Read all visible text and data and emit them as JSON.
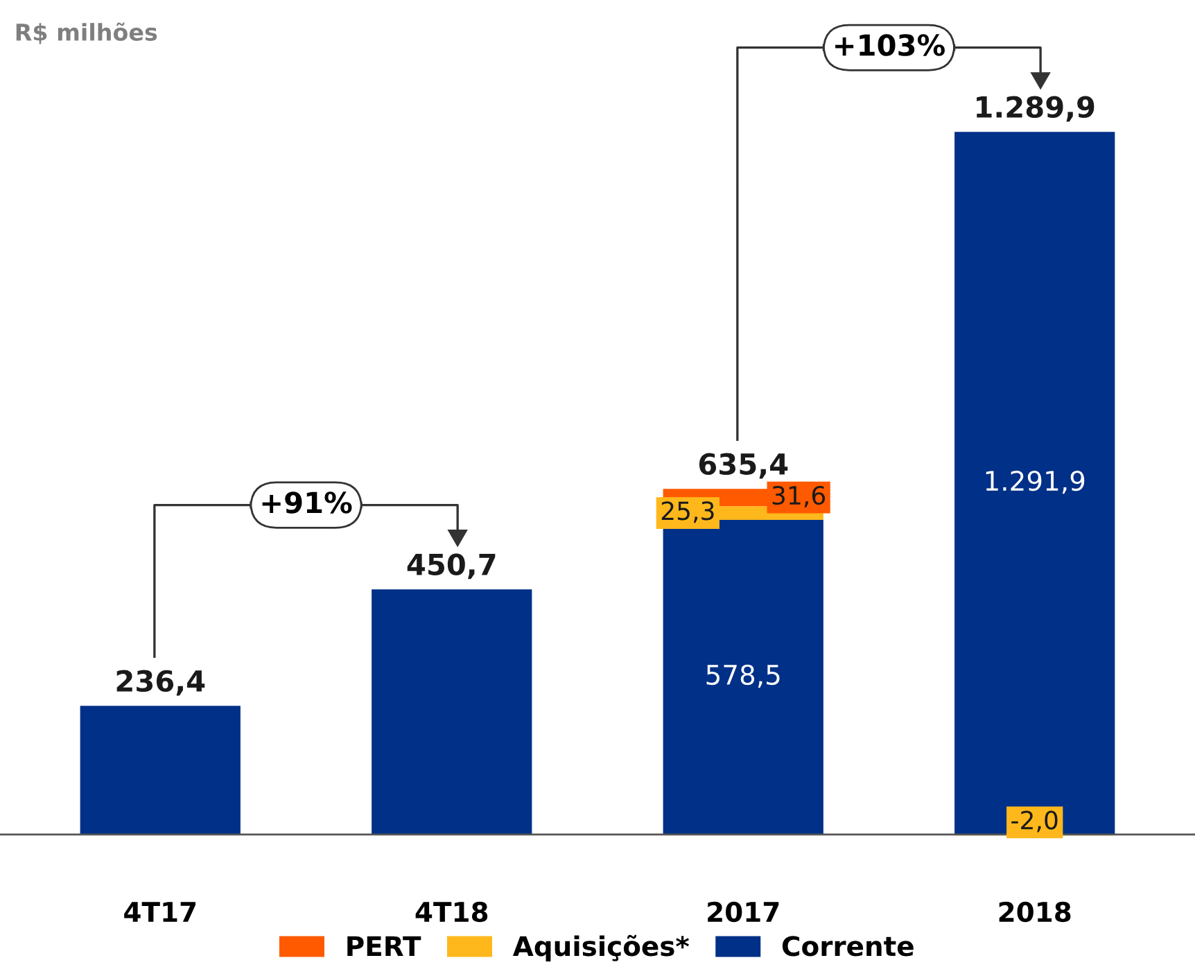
{
  "chart_data": {
    "type": "bar",
    "stacked": true,
    "annotations": [
      "R$ milhões",
      "+91%",
      "+103%"
    ],
    "categories": [
      "4T17",
      "4T18",
      "2017",
      "2018"
    ],
    "series": [
      {
        "name": "Corrente",
        "color": "#003087",
        "values": [
          236.4,
          450.7,
          578.5,
          1291.9
        ],
        "value_labels": [
          null,
          null,
          "578,5",
          "1.291,9"
        ]
      },
      {
        "name": "Aquisições*",
        "color": "#ffb81c",
        "values": [
          null,
          null,
          25.3,
          -2.0
        ],
        "value_labels": [
          null,
          null,
          "25,3",
          "-2,0"
        ]
      },
      {
        "name": "PERT",
        "color": "#ff5a00",
        "values": [
          null,
          null,
          31.6,
          null
        ],
        "value_labels": [
          null,
          null,
          "31,6",
          null
        ]
      }
    ],
    "totals": [
      "236,4",
      "450,7",
      "635,4",
      "1.289,9"
    ],
    "legend": "bottom",
    "grid": false
  }
}
